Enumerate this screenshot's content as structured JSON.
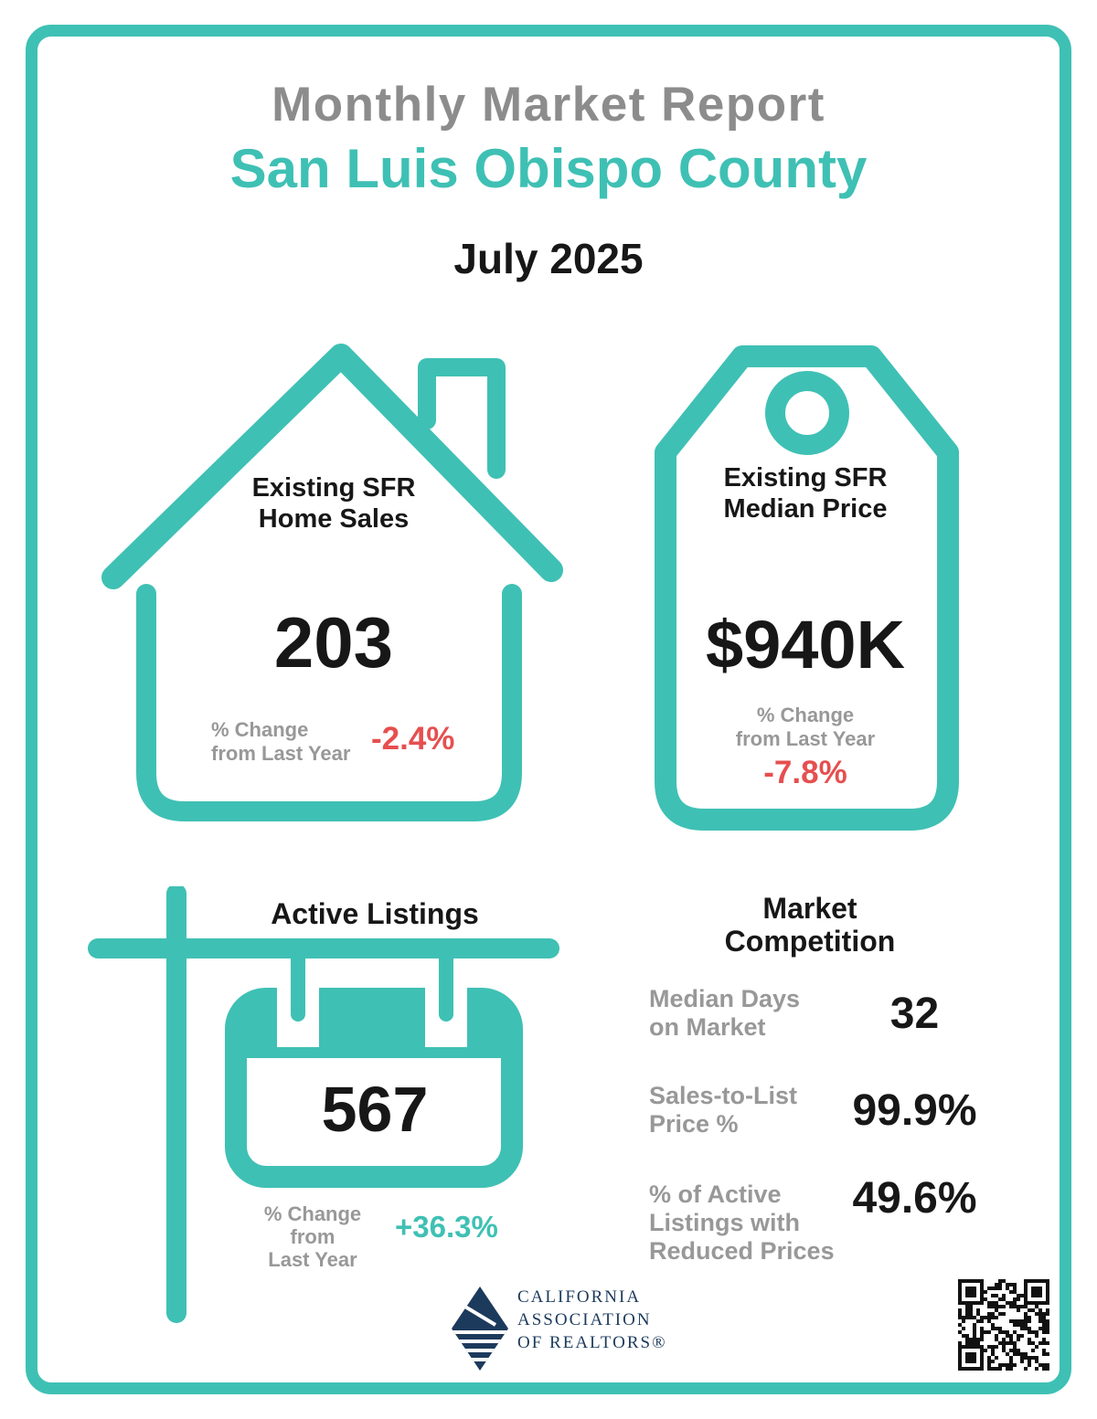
{
  "colors": {
    "teal": "#3FC0B4",
    "red": "#E64F4F",
    "gray_title": "#8C8C8C",
    "gray_label": "#989898",
    "ink": "#171717",
    "navy": "#1C3A5C"
  },
  "header": {
    "title": "Monthly Market Report",
    "subtitle": "San Luis Obispo County",
    "period": "July 2025"
  },
  "home_sales": {
    "label": "Existing SFR\nHome Sales",
    "value": "203",
    "change_label": "% Change\nfrom Last Year",
    "change_value": "-2.4%"
  },
  "median_price": {
    "label": "Existing SFR\nMedian Price",
    "value": "$940K",
    "change_label": "% Change\nfrom Last Year",
    "change_value": "-7.8%"
  },
  "active_listings": {
    "label": "Active Listings",
    "value": "567",
    "change_label": "% Change from\nLast Year",
    "change_value": "+36.3%"
  },
  "market_competition": {
    "title": "Market\nCompetition",
    "rows": [
      {
        "label": "Median Days\non Market",
        "value": "32"
      },
      {
        "label": "Sales-to-List\nPrice %",
        "value": "99.9%"
      },
      {
        "label": "% of Active\nListings with\nReduced Prices",
        "value": "49.6%"
      }
    ]
  },
  "footer": {
    "org_name": "CALIFORNIA\nASSOCIATION\nOF REALTORS®"
  }
}
